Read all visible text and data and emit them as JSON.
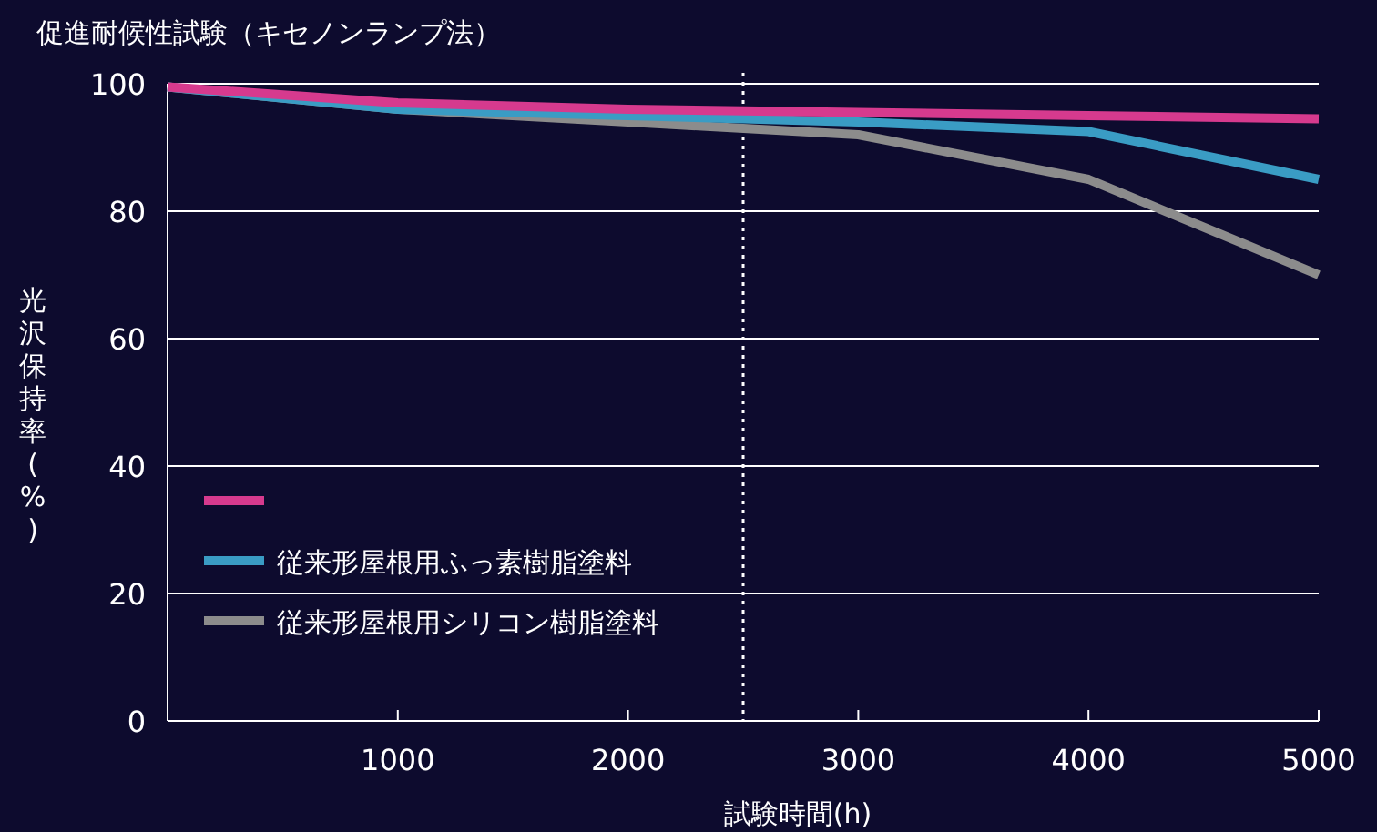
{
  "chart_data": {
    "type": "line",
    "title": "促進耐候性試験（キセノンランプ法）",
    "xlabel": "試験時間(h)",
    "ylabel": "光沢保持率(%)",
    "x": [
      0,
      1000,
      2000,
      3000,
      4000,
      5000
    ],
    "series": [
      {
        "color": "#d63a8e",
        "values": [
          99.5,
          97,
          96,
          95.5,
          95,
          94.5
        ]
      },
      {
        "name": "従来形屋根用ふっ素樹脂塗料",
        "color": "#3a9cc4",
        "values": [
          99.5,
          96,
          95,
          94,
          92.5,
          85
        ]
      },
      {
        "name": "従来形屋根用シリコン樹脂塗料",
        "color": "#8c8c8c",
        "values": [
          99.5,
          96,
          94,
          92,
          85,
          70
        ]
      }
    ],
    "xlim": [
      0,
      5000
    ],
    "xticks": [
      {
        "value": 0,
        "label": null
      },
      1000,
      2000,
      3000,
      4000,
      5000
    ],
    "ylim": [
      0,
      100
    ],
    "yticks": [
      0,
      20,
      40,
      60,
      80,
      100
    ],
    "grid": "y",
    "legend": "bottom left",
    "line_style": "solid",
    "marker": "none",
    "ref_lines": [
      {
        "axis": "x",
        "value": 2500,
        "color": "#ffffff",
        "line_style": "dotted"
      }
    ]
  }
}
